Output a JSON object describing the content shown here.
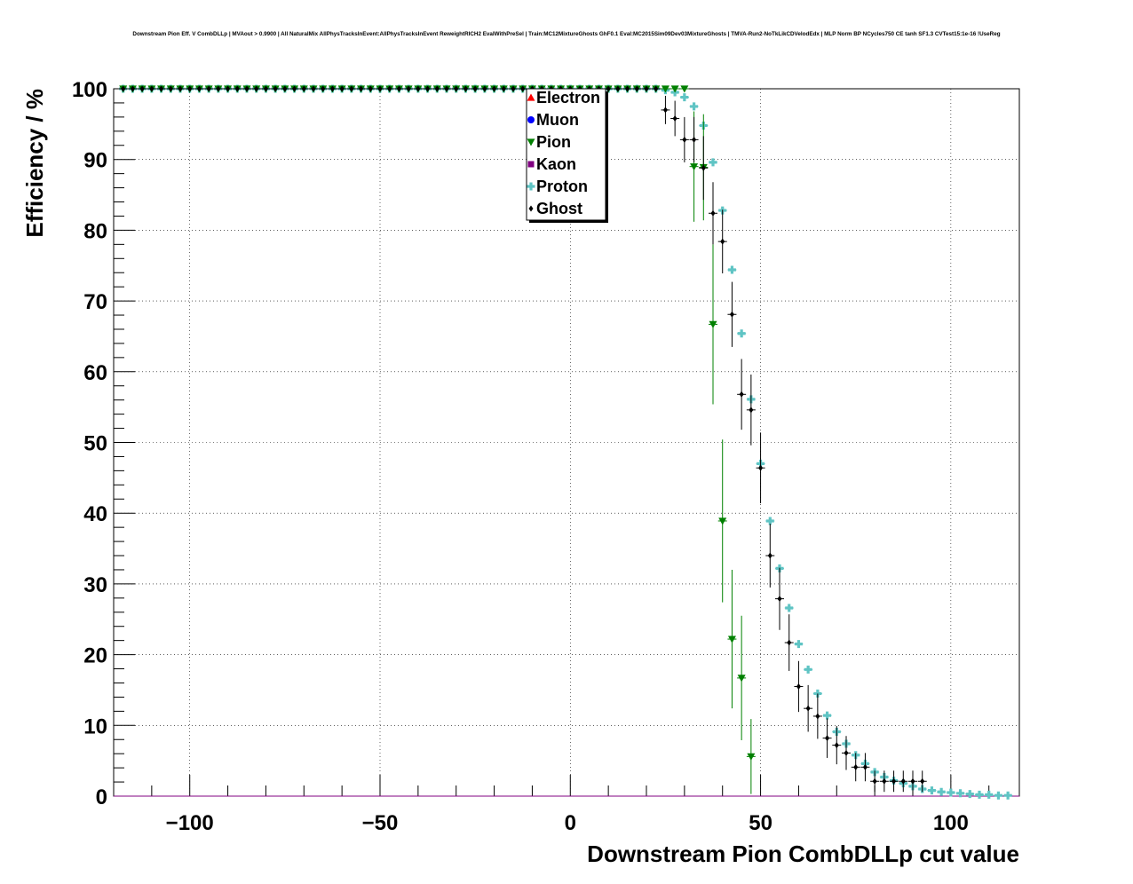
{
  "chart_data": {
    "type": "scatter",
    "title": "Downstream Pion Eff. V CombDLLp | MVAout > 0.9900 | All NaturalMix AllPhysTracksInEvent:AllPhysTracksInEvent ReweightRICH2 EvalWithPreSel | Train:MC12MixtureGhosts GhF0.1 Eval:MC2015Sim09Dev03MixtureGhosts | TMVA-Run2-NoTkLikCDVelodEdx | MLP Norm BP NCycles750 CE tanh SF1.3 CVTest15:1e-16 !UseReg",
    "xlabel": "Downstream Pion CombDLLp cut value",
    "ylabel": "Efficiency / %",
    "xlim": [
      -120,
      118
    ],
    "ylim": [
      0,
      100
    ],
    "xticks": [
      -100,
      -50,
      0,
      50,
      100
    ],
    "xtick_labels": [
      "−100",
      "−50",
      "0",
      "50",
      "100"
    ],
    "yticks": [
      0,
      10,
      20,
      30,
      40,
      50,
      60,
      70,
      80,
      90,
      100
    ],
    "ytick_labels": [
      "0",
      "10",
      "20",
      "30",
      "40",
      "50",
      "60",
      "70",
      "80",
      "90",
      "100"
    ],
    "grid": true,
    "legend_position": "top-center",
    "series": [
      {
        "name": "Electron",
        "color": "#ff0000",
        "marker": "triangle-up",
        "x": [
          -118,
          -110,
          -100,
          -90,
          -80,
          -70,
          -60,
          -50,
          -40,
          -30,
          -20,
          -10,
          0,
          10,
          20,
          30,
          40,
          50,
          60,
          70,
          80,
          90,
          100,
          110,
          116
        ],
        "y": [
          0,
          0,
          0,
          0,
          0,
          0,
          0,
          0,
          0,
          0,
          0,
          0,
          0,
          0,
          0,
          0,
          0,
          0,
          0,
          0,
          0,
          0,
          0,
          0,
          0
        ],
        "err": []
      },
      {
        "name": "Muon",
        "color": "#0000ff",
        "marker": "circle",
        "x": [
          -118,
          -110,
          -100,
          -90,
          -80,
          -70,
          -60,
          -50,
          -40,
          -30,
          -20,
          -10,
          0,
          10,
          20,
          30,
          40,
          50,
          60,
          70,
          80,
          90,
          100,
          110,
          116
        ],
        "y": [
          0,
          0,
          0,
          0,
          0,
          0,
          0,
          0,
          0,
          0,
          0,
          0,
          0,
          0,
          0,
          0,
          0,
          0,
          0,
          0,
          0,
          0,
          0,
          0,
          0
        ],
        "err": []
      },
      {
        "name": "Pion",
        "color": "#008000",
        "marker": "triangle-down",
        "x": [
          -117.5,
          -115,
          -112.5,
          -110,
          -107.5,
          -105,
          -102.5,
          -100,
          -97.5,
          -95,
          -92.5,
          -90,
          -87.5,
          -85,
          -82.5,
          -80,
          -77.5,
          -75,
          -72.5,
          -70,
          -67.5,
          -65,
          -62.5,
          -60,
          -57.5,
          -55,
          -52.5,
          -50,
          -47.5,
          -45,
          -42.5,
          -40,
          -37.5,
          -35,
          -32.5,
          -30,
          -27.5,
          -25,
          -22.5,
          -20,
          -17.5,
          -15,
          -12.5,
          -10,
          -7.5,
          -5,
          -2.5,
          0,
          2.5,
          5,
          7.5,
          10,
          12.5,
          15,
          17.5,
          20,
          22.5,
          25,
          27.5,
          30,
          32.5,
          35,
          37.5,
          40,
          42.5,
          45,
          47.5
        ],
        "y": [
          100,
          100,
          100,
          100,
          100,
          100,
          100,
          100,
          100,
          100,
          100,
          100,
          100,
          100,
          100,
          100,
          100,
          100,
          100,
          100,
          100,
          100,
          100,
          100,
          100,
          100,
          100,
          100,
          100,
          100,
          100,
          100,
          100,
          100,
          100,
          100,
          100,
          100,
          100,
          100,
          100,
          100,
          100,
          100,
          100,
          100,
          100,
          100,
          100,
          100,
          100,
          100,
          100,
          100,
          100,
          100,
          100,
          100,
          100,
          100,
          89,
          88.9,
          66.7,
          38.9,
          22.2,
          16.7,
          5.6
        ],
        "err": [
          0,
          0,
          0,
          0,
          0,
          0,
          0,
          0,
          0,
          0,
          0,
          0,
          0,
          0,
          0,
          0,
          0,
          0,
          0,
          0,
          0,
          0,
          0,
          0,
          0,
          0,
          0,
          0,
          0,
          0,
          0,
          0,
          0,
          0,
          0,
          0,
          0,
          0,
          0,
          0,
          0,
          0,
          0,
          0,
          0,
          0,
          0,
          0,
          0,
          0,
          0,
          0,
          0,
          0,
          0,
          0,
          0,
          0,
          0,
          0,
          7.8,
          7.5,
          11.3,
          11.5,
          9.8,
          8.8,
          5.3
        ]
      },
      {
        "name": "Kaon",
        "color": "#800080",
        "marker": "square",
        "x": [
          -118,
          -110,
          -100,
          -90,
          -80,
          -70,
          -60,
          -50,
          -40,
          -30,
          -20,
          -10,
          0,
          10,
          20,
          30,
          40,
          50,
          60,
          70,
          80,
          90,
          100,
          110,
          116
        ],
        "y": [
          0,
          0,
          0,
          0,
          0,
          0,
          0,
          0,
          0,
          0,
          0,
          0,
          0,
          0,
          0,
          0,
          0,
          0,
          0,
          0,
          0,
          0,
          0,
          0,
          0
        ],
        "err": []
      },
      {
        "name": "Proton",
        "color": "#5fc4c4",
        "marker": "cross",
        "x": [
          -117.5,
          -115,
          -112.5,
          -110,
          -107.5,
          -105,
          -102.5,
          -100,
          -97.5,
          -95,
          -92.5,
          -90,
          -87.5,
          -85,
          -82.5,
          -80,
          -77.5,
          -75,
          -72.5,
          -70,
          -67.5,
          -65,
          -62.5,
          -60,
          -57.5,
          -55,
          -52.5,
          -50,
          -47.5,
          -45,
          -42.5,
          -40,
          -37.5,
          -35,
          -32.5,
          -30,
          -27.5,
          -25,
          -22.5,
          -20,
          -17.5,
          -15,
          -12.5,
          -10,
          -7.5,
          -5,
          -2.5,
          0,
          2.5,
          5,
          7.5,
          10,
          12.5,
          15,
          17.5,
          20,
          22.5,
          25,
          27.5,
          30,
          32.5,
          35,
          37.5,
          40,
          42.5,
          45,
          47.5,
          50,
          52.5,
          55,
          57.5,
          60,
          62.5,
          65,
          67.5,
          70,
          72.5,
          75,
          77.5,
          80,
          82.5,
          85,
          87.5,
          90,
          92.5,
          95,
          97.5,
          100,
          102.5,
          105,
          107.5,
          110,
          112.5,
          115
        ],
        "y": [
          100,
          100,
          100,
          100,
          100,
          100,
          100,
          100,
          100,
          100,
          100,
          100,
          100,
          100,
          100,
          100,
          100,
          100,
          100,
          100,
          100,
          100,
          100,
          100,
          100,
          100,
          100,
          100,
          100,
          100,
          100,
          100,
          100,
          100,
          100,
          100,
          100,
          100,
          100,
          100,
          100,
          100,
          100,
          100,
          100,
          100,
          100,
          100,
          100,
          100,
          100,
          100,
          100,
          100,
          100,
          100,
          100,
          99.8,
          99.5,
          98.8,
          97.5,
          94.8,
          89.6,
          82.8,
          74.4,
          65.4,
          56.1,
          47,
          38.9,
          32.2,
          26.6,
          21.5,
          17.9,
          14.5,
          11.4,
          9.1,
          7.4,
          5.8,
          4.6,
          3.4,
          2.7,
          2.2,
          1.8,
          1.4,
          1,
          0.8,
          0.6,
          0.5,
          0.4,
          0.3,
          0.2,
          0.2,
          0.1,
          0.1
        ],
        "err": []
      },
      {
        "name": "Ghost",
        "color": "#000000",
        "marker": "diamond",
        "x": [
          -117.5,
          -115,
          -112.5,
          -110,
          -107.5,
          -105,
          -102.5,
          -100,
          -97.5,
          -95,
          -92.5,
          -90,
          -87.5,
          -85,
          -82.5,
          -80,
          -77.5,
          -75,
          -72.5,
          -70,
          -67.5,
          -65,
          -62.5,
          -60,
          -57.5,
          -55,
          -52.5,
          -50,
          -47.5,
          -45,
          -42.5,
          -40,
          -37.5,
          -35,
          -32.5,
          -30,
          -27.5,
          -25,
          -22.5,
          -20,
          -17.5,
          -15,
          -12.5,
          -10,
          -7.5,
          -5,
          -2.5,
          0,
          2.5,
          5,
          7.5,
          10,
          12.5,
          15,
          17.5,
          20,
          22.5,
          25,
          27.5,
          30,
          32.5,
          35,
          37.5,
          40,
          42.5,
          45,
          47.5,
          50,
          52.5,
          55,
          57.5,
          60,
          62.5,
          65,
          67.5,
          70,
          72.5,
          75,
          77.5,
          80,
          82.5,
          85,
          87.5,
          90,
          92.5
        ],
        "y": [
          100,
          100,
          100,
          100,
          100,
          100,
          100,
          100,
          100,
          100,
          100,
          100,
          100,
          100,
          100,
          100,
          100,
          100,
          100,
          100,
          100,
          100,
          100,
          100,
          100,
          100,
          100,
          100,
          100,
          100,
          100,
          100,
          100,
          100,
          100,
          100,
          100,
          100,
          100,
          100,
          100,
          100,
          100,
          100,
          100,
          100,
          100,
          100,
          100,
          100,
          100,
          100,
          100,
          100,
          100,
          100,
          100,
          97,
          95.8,
          92.8,
          92.8,
          88.8,
          82.4,
          78.4,
          68.1,
          56.8,
          54.6,
          46.4,
          34,
          27.9,
          21.7,
          15.5,
          12.4,
          11.3,
          8.2,
          7.2,
          6.1,
          4.1,
          4.1,
          2.1,
          2.1,
          2.1,
          2.1,
          2.1,
          2.1
        ],
        "err": [
          0,
          0,
          0,
          0,
          0,
          0,
          0,
          0,
          0,
          0,
          0,
          0,
          0,
          0,
          0,
          0,
          0,
          0,
          0,
          0,
          0,
          0,
          0,
          0,
          0,
          0,
          0,
          0,
          0,
          0,
          0,
          0,
          0,
          0,
          0,
          0,
          0,
          0,
          0,
          0,
          0,
          0,
          0,
          0,
          0,
          0,
          0,
          0,
          0,
          0,
          0,
          0,
          0,
          0,
          0,
          0,
          0,
          2,
          2.5,
          3.2,
          3.2,
          4.5,
          4.4,
          4.5,
          4.6,
          5,
          5,
          5,
          4.5,
          4.4,
          4,
          3.6,
          3.3,
          3.2,
          2.8,
          2.7,
          2.4,
          2,
          2,
          1.5,
          1.5,
          1.5,
          1.5,
          1.5,
          1.5
        ]
      }
    ]
  }
}
